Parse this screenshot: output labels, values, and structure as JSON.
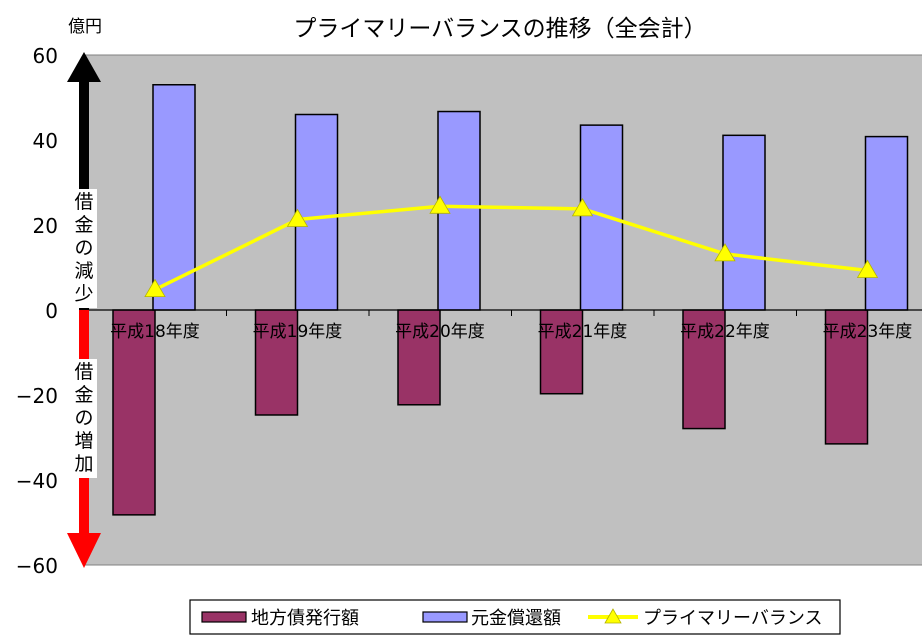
{
  "chart_data": {
    "type": "bar",
    "title": "プライマリーバランスの推移（全会計）",
    "unit_label": "億円",
    "categories": [
      "平成18年度",
      "平成19年度",
      "平成20年度",
      "平成21年度",
      "平成22年度",
      "平成23年度"
    ],
    "series": [
      {
        "name": "地方債発行額",
        "kind": "bar",
        "color": "#993366",
        "values": [
          -48.2,
          -24.7,
          -22.3,
          -19.7,
          -27.9,
          -31.5
        ]
      },
      {
        "name": "元金償還額",
        "kind": "bar",
        "color": "#9999ff",
        "values": [
          53.0,
          46.0,
          46.7,
          43.5,
          41.1,
          40.8
        ]
      },
      {
        "name": "プライマリーバランス",
        "kind": "line",
        "color": "#ffff00",
        "values": [
          4.8,
          21.3,
          24.4,
          23.8,
          13.2,
          9.3
        ]
      }
    ],
    "ylim": [
      -60,
      60
    ],
    "yticks": [
      60,
      40,
      20,
      0,
      -20,
      -40,
      -60
    ],
    "ytick_labels": [
      "60",
      "40",
      "20",
      "0",
      "−20",
      "−40",
      "−60"
    ],
    "plot_background": "#c0c0c0",
    "annotations": {
      "up_arrow_label": "借金の減少",
      "up_arrow_color": "#000000",
      "down_arrow_label": "借金の増加",
      "down_arrow_color": "#ff0000"
    },
    "legend_position": "bottom"
  }
}
